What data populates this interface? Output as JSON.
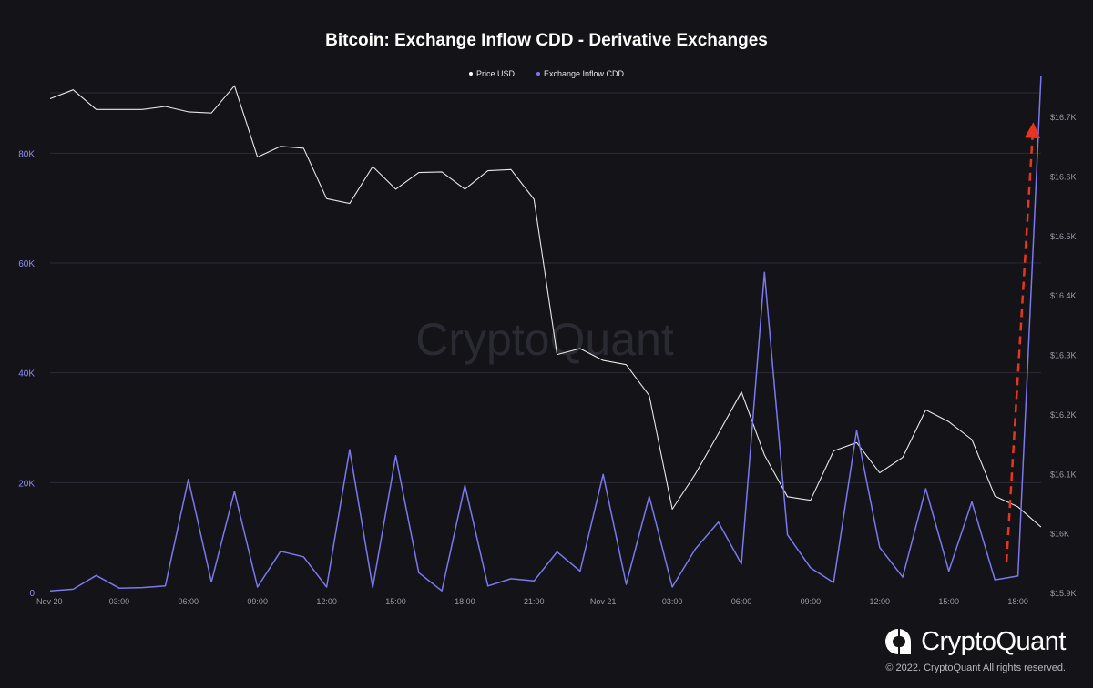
{
  "chart_data": {
    "type": "line",
    "title": "Bitcoin: Exchange Inflow CDD - Derivative Exchanges",
    "x_ticks": [
      "Nov 20",
      "03:00",
      "06:00",
      "09:00",
      "12:00",
      "15:00",
      "18:00",
      "21:00",
      "Nov 21",
      "03:00",
      "06:00",
      "09:00",
      "12:00",
      "15:00",
      "18:00"
    ],
    "x_start_hour": 0,
    "left_axis": {
      "ticks": [
        "0",
        "20K",
        "40K",
        "60K",
        "80K"
      ],
      "tick_values": [
        0,
        20000,
        40000,
        60000,
        80000
      ],
      "range": [
        0,
        91000
      ]
    },
    "right_axis": {
      "ticks": [
        "$15.9K",
        "$16K",
        "$16.1K",
        "$16.2K",
        "$16.3K",
        "$16.4K",
        "$16.5K",
        "$16.6K",
        "$16.7K"
      ],
      "tick_values": [
        15900,
        16000,
        16100,
        16200,
        16300,
        16400,
        16500,
        16600,
        16700
      ],
      "range": [
        15900,
        16740
      ]
    },
    "grid": true,
    "legend_position": "top-center",
    "series": [
      {
        "name": "Price USD",
        "axis": "right",
        "color": "#e8e8e8",
        "values": [
          16730,
          16745,
          16712,
          16712,
          16712,
          16717,
          16708,
          16706,
          16752,
          16632,
          16650,
          16647,
          16562,
          16554,
          16616,
          16578,
          16606,
          16607,
          16578,
          16609,
          16611,
          16561,
          16300,
          16310,
          16290,
          16283,
          16231,
          16040,
          16099,
          16167,
          16237,
          16131,
          16061,
          16055,
          16138,
          16152,
          16101,
          16127,
          16207,
          16187,
          16157,
          16062,
          16044,
          16010
        ]
      },
      {
        "name": "Exchange Inflow CDD",
        "axis": "left",
        "color": "#7b78f0",
        "values": [
          300,
          600,
          3100,
          800,
          900,
          1200,
          20600,
          1900,
          18400,
          1000,
          7500,
          6500,
          1000,
          26000,
          900,
          24900,
          3600,
          300,
          19500,
          1200,
          2500,
          2100,
          7400,
          3900,
          21500,
          1500,
          17500,
          1000,
          7900,
          12800,
          5200,
          58300,
          10500,
          4500,
          1800,
          29500,
          8200,
          2800,
          18900,
          3900,
          16500,
          2300,
          3000,
          94000
        ]
      }
    ],
    "annotations": [
      {
        "type": "arrow",
        "style": "dashed",
        "color": "#e8351f",
        "direction": "up"
      }
    ]
  },
  "watermark": "CryptoQuant",
  "brand": {
    "name": "CryptoQuant",
    "copyright": "© 2022. CryptoQuant All rights reserved."
  }
}
